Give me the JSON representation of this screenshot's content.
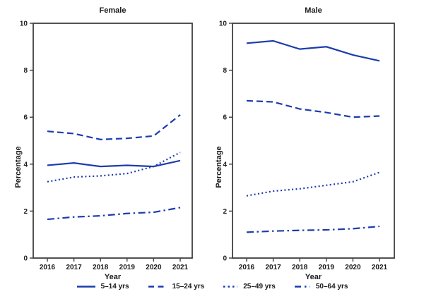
{
  "colors": {
    "line_blue": "#1c3cae",
    "frame": "#3f3f3f",
    "text": "#1a1a1a",
    "background": "#ffffff"
  },
  "legend": {
    "position": "bottom-center",
    "items": [
      {
        "label": "5–14 yrs",
        "style": "solid"
      },
      {
        "label": "15–24 yrs",
        "style": "dashed"
      },
      {
        "label": "25–49 yrs",
        "style": "dotted"
      },
      {
        "label": "50–64 yrs",
        "style": "dashdot"
      }
    ]
  },
  "chart_data": [
    {
      "type": "line",
      "title": "Female",
      "xlabel": "Year",
      "ylabel": "Percentage",
      "x": [
        2016,
        2017,
        2018,
        2019,
        2020,
        2021
      ],
      "ylim": [
        0,
        10
      ],
      "yticks": [
        0,
        2,
        4,
        6,
        8,
        10
      ],
      "grid": false,
      "series": [
        {
          "name": "5–14 yrs",
          "style": "solid",
          "values": [
            3.95,
            4.05,
            3.9,
            3.95,
            3.9,
            4.15
          ]
        },
        {
          "name": "15–24 yrs",
          "style": "dashed",
          "values": [
            5.4,
            5.3,
            5.05,
            5.1,
            5.2,
            6.1
          ]
        },
        {
          "name": "25–49 yrs",
          "style": "dotted",
          "values": [
            3.25,
            3.45,
            3.5,
            3.6,
            3.9,
            4.5
          ]
        },
        {
          "name": "50–64 yrs",
          "style": "dashdot",
          "values": [
            1.65,
            1.75,
            1.8,
            1.9,
            1.95,
            2.15
          ]
        }
      ]
    },
    {
      "type": "line",
      "title": "Male",
      "xlabel": "Year",
      "ylabel": "Percentage",
      "x": [
        2016,
        2017,
        2018,
        2019,
        2020,
        2021
      ],
      "ylim": [
        0,
        10
      ],
      "yticks": [
        0,
        2,
        4,
        6,
        8,
        10
      ],
      "grid": false,
      "series": [
        {
          "name": "5–14 yrs",
          "style": "solid",
          "values": [
            9.15,
            9.25,
            8.9,
            9.0,
            8.65,
            8.4
          ]
        },
        {
          "name": "15–24 yrs",
          "style": "dashed",
          "values": [
            6.7,
            6.65,
            6.35,
            6.2,
            6.0,
            6.05
          ]
        },
        {
          "name": "25–49 yrs",
          "style": "dotted",
          "values": [
            2.65,
            2.85,
            2.95,
            3.1,
            3.25,
            3.65
          ]
        },
        {
          "name": "50–64 yrs",
          "style": "dashdot",
          "values": [
            1.1,
            1.15,
            1.18,
            1.2,
            1.25,
            1.35
          ]
        }
      ]
    }
  ]
}
